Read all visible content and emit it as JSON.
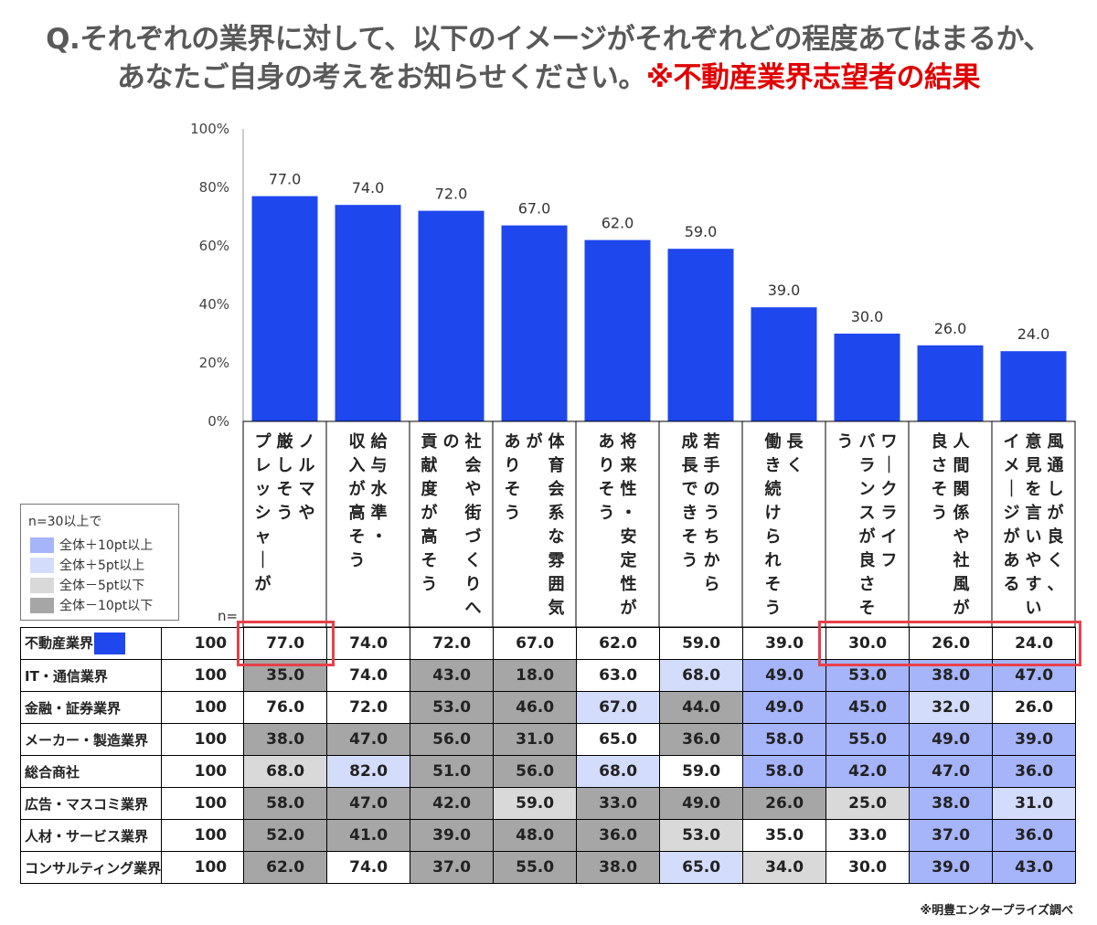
{
  "title": {
    "line1": "Q.それぞれの業界に対して、以下のイメージがそれぞれどの程度あてはまるか、",
    "line2": "あなたご自身の考えをお知らせください。",
    "highlight": "※不動産業界志望者の結果"
  },
  "chart_data": {
    "type": "bar",
    "categories": [
      "ノルマやプレッシャーが厳しそう",
      "給与水準・収入が高そう",
      "社会や街づくりへの貢献度が高そう",
      "体育会系な雰囲気がありそう",
      "将来性・安定性がありそう",
      "若手のうちから成長できそう",
      "長く働き続けられそう",
      "ワークライフバランスが良さそう",
      "人間関係や社風が良さそう",
      "風通しが良く、意見を言いやすいイメージがある"
    ],
    "category_columns": [
      [
        "ノルマや",
        "厳しそう",
        "プレッシャーが"
      ],
      [
        "給与水準・",
        "収入が高そう"
      ],
      [
        "社会や街づくりへ",
        "の",
        "貢献度が高そう"
      ],
      [
        "体育会系な雰囲気",
        "が",
        "ありそう"
      ],
      [
        "将来性・安定性が",
        "ありそう"
      ],
      [
        "若手のうちから",
        "成長できそう"
      ],
      [
        "長く",
        "働き続けられそう"
      ],
      [
        "ワークライフ",
        "バランスが良さそ",
        "う"
      ],
      [
        "人間関係や社風が",
        "良さそう"
      ],
      [
        "風通しが良く、",
        "意見を言いやすい",
        "イメージがある"
      ]
    ],
    "values": [
      77.0,
      74.0,
      72.0,
      67.0,
      62.0,
      59.0,
      39.0,
      30.0,
      26.0,
      24.0
    ],
    "value_labels": [
      "77.0",
      "74.0",
      "72.0",
      "67.0",
      "62.0",
      "59.0",
      "39.0",
      "30.0",
      "26.0",
      "24.0"
    ],
    "yticks": [
      "0%",
      "20%",
      "40%",
      "60%",
      "80%",
      "100%"
    ],
    "ylim": [
      0,
      100
    ],
    "bar_color": "#1f47ee",
    "grid": false
  },
  "legend": {
    "title": "n=30以上で",
    "items": [
      {
        "label": "全体＋10pt以上",
        "color": "#a6b4fa"
      },
      {
        "label": "全体＋5pt以上",
        "color": "#d4dcfc"
      },
      {
        "label": "全体－5pt以下",
        "color": "#d9d9d9"
      },
      {
        "label": "全体－10pt以下",
        "color": "#a6a6a6"
      }
    ]
  },
  "n_label": "n=",
  "table": {
    "rows": [
      {
        "label": "不動産業界",
        "badge": true,
        "n": "100",
        "values": [
          "77.0",
          "74.0",
          "72.0",
          "67.0",
          "62.0",
          "59.0",
          "39.0",
          "30.0",
          "26.0",
          "24.0"
        ],
        "colors": [
          "#ffffff",
          "#ffffff",
          "#ffffff",
          "#ffffff",
          "#ffffff",
          "#ffffff",
          "#ffffff",
          "#ffffff",
          "#ffffff",
          "#ffffff"
        ]
      },
      {
        "label": "IT・通信業界",
        "badge": false,
        "n": "100",
        "values": [
          "35.0",
          "74.0",
          "43.0",
          "18.0",
          "63.0",
          "68.0",
          "49.0",
          "53.0",
          "38.0",
          "47.0"
        ],
        "colors": [
          "#a6a6a6",
          "#ffffff",
          "#a6a6a6",
          "#a6a6a6",
          "#ffffff",
          "#d4dcfc",
          "#a6b4fa",
          "#a6b4fa",
          "#a6b4fa",
          "#a6b4fa"
        ]
      },
      {
        "label": "金融・証券業界",
        "badge": false,
        "n": "100",
        "values": [
          "76.0",
          "72.0",
          "53.0",
          "46.0",
          "67.0",
          "44.0",
          "49.0",
          "45.0",
          "32.0",
          "26.0"
        ],
        "colors": [
          "#ffffff",
          "#ffffff",
          "#a6a6a6",
          "#a6a6a6",
          "#d4dcfc",
          "#a6a6a6",
          "#a6b4fa",
          "#a6b4fa",
          "#d4dcfc",
          "#ffffff"
        ]
      },
      {
        "label": "メーカー・製造業界",
        "badge": false,
        "n": "100",
        "values": [
          "38.0",
          "47.0",
          "56.0",
          "31.0",
          "65.0",
          "36.0",
          "58.0",
          "55.0",
          "49.0",
          "39.0"
        ],
        "colors": [
          "#a6a6a6",
          "#a6a6a6",
          "#a6a6a6",
          "#a6a6a6",
          "#ffffff",
          "#a6a6a6",
          "#a6b4fa",
          "#a6b4fa",
          "#a6b4fa",
          "#a6b4fa"
        ]
      },
      {
        "label": "総合商社",
        "badge": false,
        "n": "100",
        "values": [
          "68.0",
          "82.0",
          "51.0",
          "56.0",
          "68.0",
          "59.0",
          "58.0",
          "42.0",
          "47.0",
          "36.0"
        ],
        "colors": [
          "#d9d9d9",
          "#d4dcfc",
          "#a6a6a6",
          "#a6a6a6",
          "#d4dcfc",
          "#ffffff",
          "#a6b4fa",
          "#a6b4fa",
          "#a6b4fa",
          "#a6b4fa"
        ]
      },
      {
        "label": "広告・マスコミ業界",
        "badge": false,
        "n": "100",
        "values": [
          "58.0",
          "47.0",
          "42.0",
          "59.0",
          "33.0",
          "49.0",
          "26.0",
          "25.0",
          "38.0",
          "31.0"
        ],
        "colors": [
          "#a6a6a6",
          "#a6a6a6",
          "#a6a6a6",
          "#d9d9d9",
          "#a6a6a6",
          "#a6a6a6",
          "#a6a6a6",
          "#d9d9d9",
          "#a6b4fa",
          "#d4dcfc"
        ]
      },
      {
        "label": "人材・サービス業界",
        "badge": false,
        "n": "100",
        "values": [
          "52.0",
          "41.0",
          "39.0",
          "48.0",
          "36.0",
          "53.0",
          "35.0",
          "33.0",
          "37.0",
          "36.0"
        ],
        "colors": [
          "#a6a6a6",
          "#a6a6a6",
          "#a6a6a6",
          "#a6a6a6",
          "#a6a6a6",
          "#d9d9d9",
          "#ffffff",
          "#ffffff",
          "#a6b4fa",
          "#a6b4fa"
        ]
      },
      {
        "label": "コンサルティング業界",
        "badge": false,
        "n": "100",
        "values": [
          "62.0",
          "74.0",
          "37.0",
          "55.0",
          "38.0",
          "65.0",
          "34.0",
          "30.0",
          "39.0",
          "43.0"
        ],
        "colors": [
          "#a6a6a6",
          "#ffffff",
          "#a6a6a6",
          "#a6a6a6",
          "#a6a6a6",
          "#d4dcfc",
          "#d9d9d9",
          "#ffffff",
          "#a6b4fa",
          "#a6b4fa"
        ]
      }
    ]
  },
  "footnote": "※明豊エンタープライズ調べ"
}
